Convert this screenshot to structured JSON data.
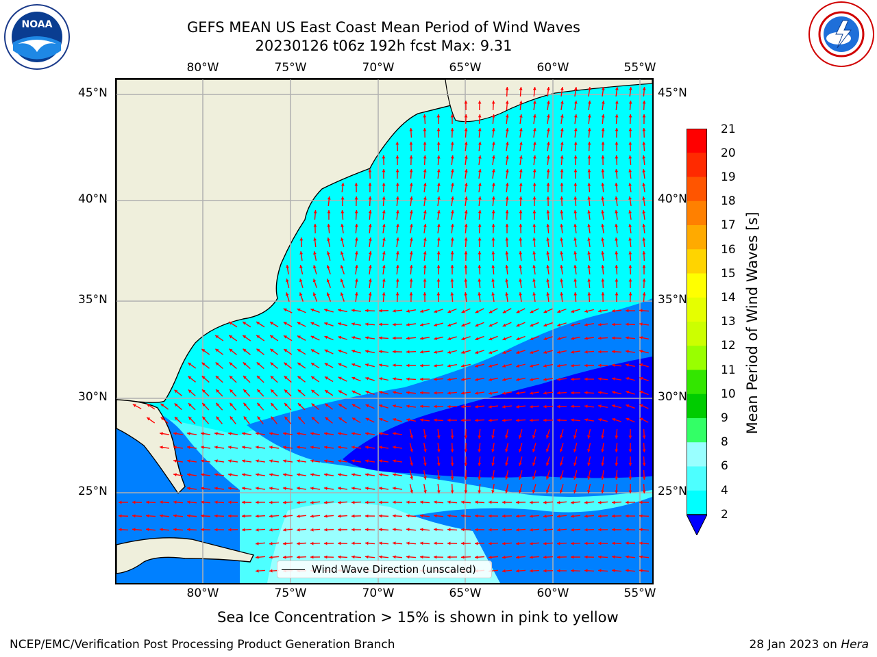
{
  "title_line1": "GEFS MEAN US East Coast Mean Period of Wind Waves",
  "title_line2": "20230126 t06z 192h fcst   Max: 9.31",
  "logos": {
    "left": "NOAA",
    "right": "NATIONAL WEATHER SERVICE"
  },
  "axes": {
    "lon_labels": [
      "80°W",
      "75°W",
      "70°W",
      "65°W",
      "60°W",
      "55°W"
    ],
    "lat_labels": [
      "45°N",
      "40°N",
      "35°N",
      "30°N",
      "25°N"
    ]
  },
  "legend": {
    "label": "Wind Wave Direction (unscaled)"
  },
  "colorbar": {
    "label": "Mean Period of Wind Waves [s]",
    "ticks": [
      "21",
      "20",
      "19",
      "18",
      "17",
      "16",
      "15",
      "14",
      "13",
      "12",
      "11",
      "10",
      "9",
      "8",
      "6",
      "4",
      "2"
    ],
    "colors": [
      "#ff0000",
      "#ff2a00",
      "#ff5500",
      "#ff8000",
      "#ffaa00",
      "#ffd400",
      "#ffff00",
      "#e5ff00",
      "#ccff00",
      "#99ff00",
      "#33e600",
      "#00cc00",
      "#33ff66",
      "#66ff99",
      "#99ffff",
      "#4dffff",
      "#00ffff",
      "#0080ff"
    ],
    "under_color": "#0000ff"
  },
  "colors": {
    "land": "#efefdc",
    "cyan": "#00ffff",
    "light_cyan": "#4dffff",
    "pale_cyan": "#99ffff",
    "blue": "#0080ff",
    "dark_blue": "#0000ff",
    "arrow": "#ff0000",
    "grid": "#b0b0b0"
  },
  "caption": "Sea Ice Concentration > 15% is shown in pink to yellow",
  "footer_left": "NCEP/EMC/Verification Post Processing Product Generation Branch",
  "footer_right_date": "28 Jan 2023 on",
  "footer_right_host": "Hera"
}
